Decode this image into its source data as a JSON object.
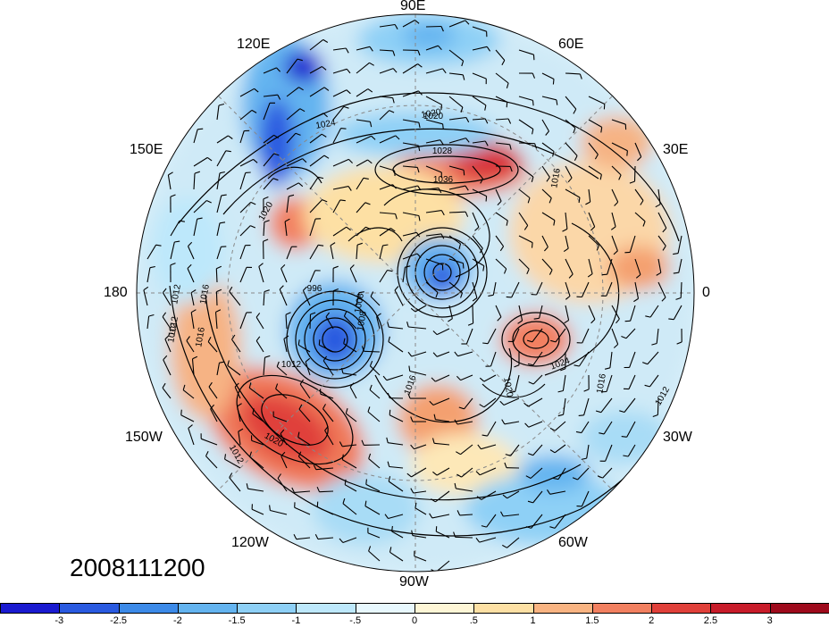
{
  "longitude_labels": {
    "n90e": "90E",
    "n120e": "120E",
    "n60e": "60E",
    "n150e": "150E",
    "n30e": "30E",
    "n180": "180",
    "n0": "0",
    "n150w": "150W",
    "n30w": "30W",
    "n120w": "120W",
    "n60w": "60W",
    "n90w": "90W"
  },
  "date_label": "2008111200",
  "contour_labels": [
    "1020",
    "1024",
    "1028",
    "1036",
    "1016",
    "1020",
    "1020",
    "1008",
    "1012",
    "1016",
    "1012",
    "1016",
    "1012",
    "996",
    "1008",
    "1012",
    "1024",
    "1020",
    "1016",
    "1016",
    "1012",
    "1020",
    "1012"
  ],
  "colorbar": {
    "colors": [
      "#1a1ad0",
      "#2a5ae0",
      "#3c8ae8",
      "#64b4f0",
      "#8ed0f6",
      "#bde8fb",
      "#e8f8fe",
      "#fef6d6",
      "#fde0a4",
      "#f9b482",
      "#f28060",
      "#e0403a",
      "#c81c2a",
      "#9e0a1c"
    ],
    "tick_labels": [
      "-3",
      "-2.5",
      "-2",
      "-1.5",
      "-1",
      "-.5",
      "0",
      ".5",
      "1",
      "1.5",
      "2",
      "2.5",
      "3"
    ]
  },
  "anomaly_features": [
    {
      "type": "neg",
      "value": -3.0
    },
    {
      "type": "neg",
      "value": -2.5
    },
    {
      "type": "neg",
      "value": -2.0
    },
    {
      "type": "pos",
      "value": 2.5
    },
    {
      "type": "pos",
      "value": 2.0
    },
    {
      "type": "pos",
      "value": 1.5
    }
  ]
}
